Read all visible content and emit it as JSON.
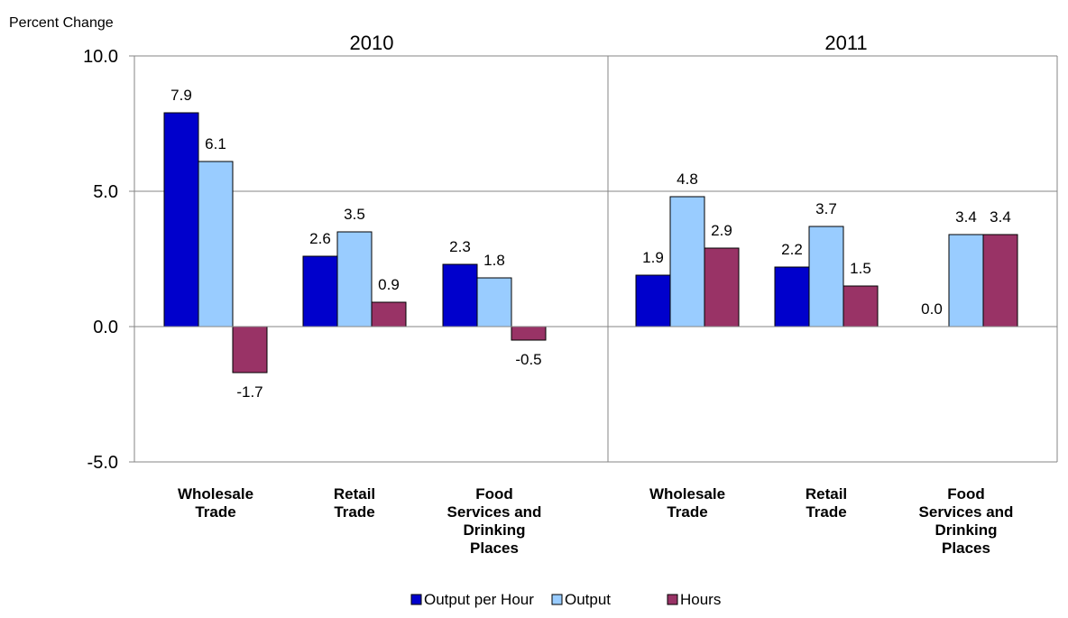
{
  "chart_data": {
    "type": "bar",
    "ylabel": "Percent Change",
    "ylim": [
      -5.0,
      10.0
    ],
    "yticks": [
      -5.0,
      0.0,
      5.0,
      10.0
    ],
    "ytick_labels": [
      "-5.0",
      "0.0",
      "5.0",
      "10.0"
    ],
    "grid": true,
    "legend_position": "bottom",
    "groups": [
      {
        "title": "2010",
        "categories": [
          "Wholesale Trade",
          "Retail Trade",
          "Food Services and Drinking Places"
        ],
        "category_lines": [
          [
            "Wholesale",
            "Trade"
          ],
          [
            "Retail",
            "Trade"
          ],
          [
            "Food",
            "Services and",
            "Drinking",
            "Places"
          ]
        ],
        "series": [
          {
            "name": "Output per Hour",
            "values": [
              7.9,
              2.6,
              2.3
            ],
            "labels": [
              "7.9",
              "2.6",
              "2.3"
            ]
          },
          {
            "name": "Output",
            "values": [
              6.1,
              3.5,
              1.8
            ],
            "labels": [
              "6.1",
              "3.5",
              "1.8"
            ]
          },
          {
            "name": "Hours",
            "values": [
              -1.7,
              0.9,
              -0.5
            ],
            "labels": [
              "-1.7",
              "0.9",
              "-0.5"
            ]
          }
        ]
      },
      {
        "title": "2011",
        "categories": [
          "Wholesale Trade",
          "Retail Trade",
          "Food Services and Drinking Places"
        ],
        "category_lines": [
          [
            "Wholesale",
            "Trade"
          ],
          [
            "Retail",
            "Trade"
          ],
          [
            "Food",
            "Services and",
            "Drinking",
            "Places"
          ]
        ],
        "series": [
          {
            "name": "Output per Hour",
            "values": [
              1.9,
              2.2,
              0.0
            ],
            "labels": [
              "1.9",
              "2.2",
              "0.0"
            ]
          },
          {
            "name": "Output",
            "values": [
              4.8,
              3.7,
              3.4
            ],
            "labels": [
              "4.8",
              "3.7",
              "3.4"
            ]
          },
          {
            "name": "Hours",
            "values": [
              2.9,
              1.5,
              3.4
            ],
            "labels": [
              "2.9",
              "1.5",
              "3.4"
            ]
          }
        ]
      }
    ],
    "legend": [
      {
        "name": "Output per Hour",
        "color": "#0000cc"
      },
      {
        "name": "Output",
        "color": "#99ccff"
      },
      {
        "name": "Hours",
        "color": "#993366"
      }
    ]
  }
}
